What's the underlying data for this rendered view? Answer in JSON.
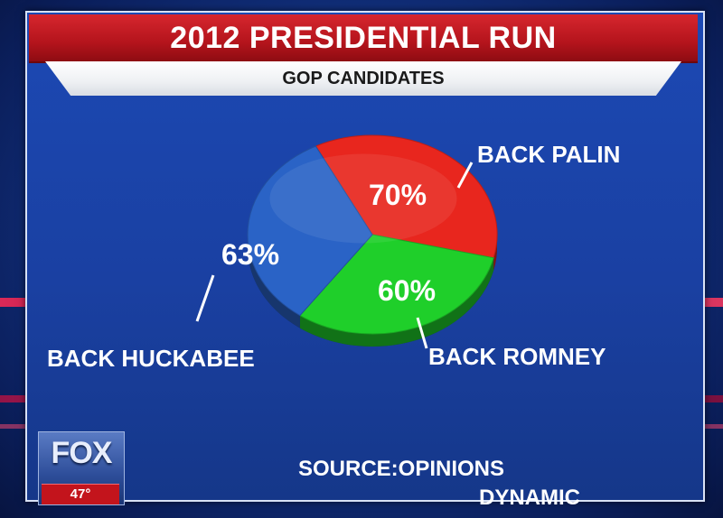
{
  "header": {
    "title": "2012 PRESIDENTIAL RUN",
    "subtitle": "GOP CANDIDATES"
  },
  "chart_data": {
    "type": "pie",
    "title": "2012 PRESIDENTIAL RUN",
    "subtitle": "GOP CANDIDATES",
    "categories": [
      "BACK PALIN",
      "BACK ROMNEY",
      "BACK HUCKABEE"
    ],
    "values": [
      70,
      60,
      63
    ],
    "value_labels": [
      "70%",
      "60%",
      "63%"
    ],
    "colors": [
      "#e8261e",
      "#1fcf2a",
      "#2a63c6"
    ],
    "legend": "none"
  },
  "source": {
    "line1": "SOURCE:OPINIONS",
    "line2": "DYNAMIC"
  },
  "logo": {
    "network": "FOX",
    "channel": "47"
  },
  "colors": {
    "title_bar": "#c41a22",
    "subtitle_bar": "#f2f3f5",
    "panel": "#1c49b4",
    "text": "#ffffff"
  }
}
